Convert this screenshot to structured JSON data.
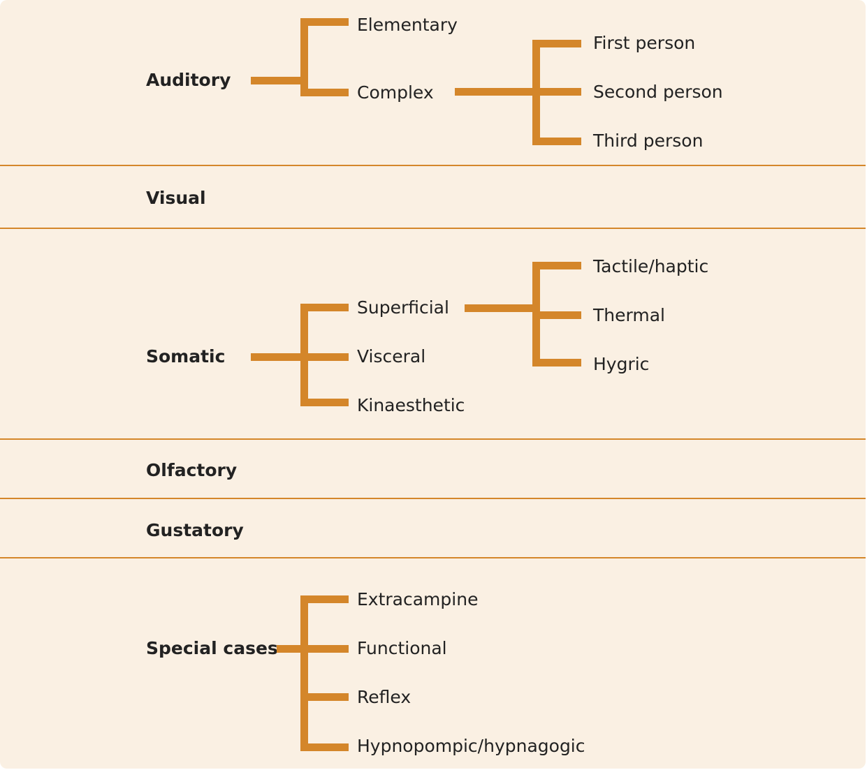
{
  "categories": {
    "auditory": "Auditory",
    "visual": "Visual",
    "somatic": "Somatic",
    "olfactory": "Olfactory",
    "gustatory": "Gustatory",
    "special": "Special cases"
  },
  "auditory": {
    "children": [
      "Elementary",
      "Complex"
    ],
    "complex_children": [
      "First person",
      "Second person",
      "Third person"
    ]
  },
  "somatic": {
    "children": [
      "Superficial",
      "Visceral",
      "Kinaesthetic"
    ],
    "superficial_children": [
      "Tactile/haptic",
      "Thermal",
      "Hygric"
    ]
  },
  "special": {
    "children": [
      "Extracampine",
      "Functional",
      "Reflex",
      "Hypnopompic/hypnagogic"
    ]
  },
  "colors": {
    "accent": "#d4862a",
    "background": "#faf0e3",
    "text": "#222222"
  }
}
